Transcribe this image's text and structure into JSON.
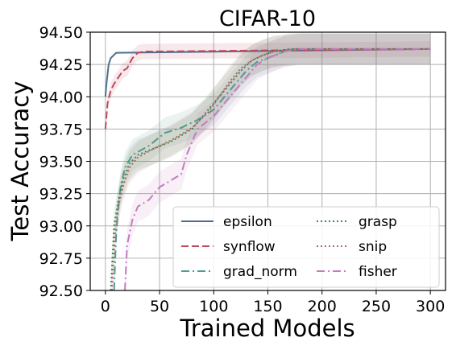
{
  "chart_data": {
    "type": "line",
    "title": "CIFAR-10",
    "xlabel": "Trained Models",
    "ylabel": "Test Accuracy",
    "xlim": [
      -14,
      314
    ],
    "ylim": [
      92.5,
      94.5
    ],
    "xticks": [
      0,
      50,
      100,
      150,
      200,
      250,
      300
    ],
    "yticks": [
      92.5,
      92.75,
      93.0,
      93.25,
      93.5,
      93.75,
      94.0,
      94.25,
      94.5
    ],
    "xtick_labels": [
      "0",
      "50",
      "100",
      "150",
      "200",
      "250",
      "300"
    ],
    "ytick_labels": [
      "92.50",
      "92.75",
      "93.00",
      "93.25",
      "93.50",
      "93.75",
      "94.00",
      "94.25",
      "94.50"
    ],
    "grid": true,
    "legend_position": "lower-right",
    "series": [
      {
        "name": "epsilon",
        "color": "#4f6f8f",
        "dash": "solid",
        "x": [
          0,
          1,
          3,
          5,
          10,
          300
        ],
        "y": [
          94.0,
          94.1,
          94.25,
          94.3,
          94.34,
          94.37
        ],
        "band": 0.0
      },
      {
        "name": "synflow",
        "color": "#c0495b",
        "dash": "dashed",
        "x": [
          0,
          2,
          5,
          8,
          12,
          16,
          20,
          25,
          30,
          35,
          300
        ],
        "y": [
          93.75,
          93.95,
          94.05,
          94.1,
          94.15,
          94.2,
          94.22,
          94.3,
          94.34,
          94.35,
          94.37
        ],
        "band": 0.06
      },
      {
        "name": "grad_norm",
        "color": "#4f9a94",
        "dash": "dashdot",
        "x": [
          8,
          10,
          12,
          14,
          18,
          25,
          40,
          55,
          70,
          85,
          100,
          110,
          120,
          130,
          140,
          150,
          165,
          180,
          300
        ],
        "y": [
          92.5,
          92.95,
          93.15,
          93.3,
          93.45,
          93.55,
          93.62,
          93.72,
          93.76,
          93.82,
          93.9,
          94.0,
          94.1,
          94.2,
          94.27,
          94.3,
          94.35,
          94.37,
          94.37
        ],
        "band": 0.12
      },
      {
        "name": "grasp",
        "color": "#3f8a4a",
        "dash": "dotted",
        "x": [
          5,
          8,
          12,
          16,
          22,
          30,
          45,
          60,
          80,
          95,
          105,
          115,
          125,
          135,
          145,
          155,
          170,
          300
        ],
        "y": [
          92.5,
          93.0,
          93.2,
          93.35,
          93.48,
          93.55,
          93.6,
          93.65,
          93.75,
          93.9,
          94.0,
          94.1,
          94.2,
          94.28,
          94.32,
          94.35,
          94.37,
          94.37
        ],
        "band": 0.12
      },
      {
        "name": "snip",
        "color": "#b5656b",
        "dash": "dotted",
        "x": [
          6,
          9,
          12,
          16,
          22,
          30,
          45,
          60,
          80,
          95,
          105,
          115,
          125,
          135,
          145,
          155,
          175,
          300
        ],
        "y": [
          92.5,
          92.95,
          93.15,
          93.3,
          93.45,
          93.53,
          93.6,
          93.66,
          93.76,
          93.88,
          94.0,
          94.12,
          94.22,
          94.28,
          94.32,
          94.35,
          94.37,
          94.37
        ],
        "band": 0.12
      },
      {
        "name": "fisher",
        "color": "#c27cc0",
        "dash": "dashdot",
        "x": [
          18,
          20,
          25,
          30,
          40,
          50,
          60,
          70,
          75,
          85,
          100,
          110,
          120,
          130,
          140,
          150,
          165,
          180,
          300
        ],
        "y": [
          92.5,
          92.85,
          93.05,
          93.15,
          93.2,
          93.3,
          93.35,
          93.4,
          93.55,
          93.75,
          93.85,
          93.95,
          94.05,
          94.15,
          94.25,
          94.3,
          94.35,
          94.37,
          94.37
        ],
        "band": 0.12
      }
    ]
  }
}
